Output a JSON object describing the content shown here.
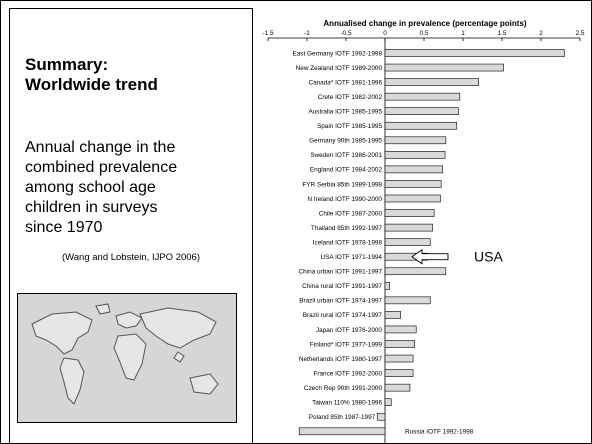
{
  "left_panel": {
    "title_lines": [
      "Summary:",
      "Worldwide trend"
    ],
    "body_lines": [
      "Annual change in the",
      "combined prevalence",
      "among school age",
      "children in surveys",
      "since 1970"
    ],
    "citation": "(Wang and Lobstein, IJPO 2006)"
  },
  "annotation": {
    "usa_label": "USA",
    "russia_label": "Russia IOTF 1992-1998"
  },
  "colors": {
    "bar_fill": "#d9d9d9",
    "bar_stroke": "#000000",
    "map_ocean": "#d6d6d6",
    "map_land": "#e6e6e6"
  },
  "chart_data": {
    "type": "bar",
    "orientation": "horizontal",
    "title": "Annualised change in prevalence (percentage points)",
    "xlim": [
      -1.5,
      2.5
    ],
    "xticks": [
      "-1.5",
      "-1",
      "-0.5",
      "0",
      "0.5",
      "1",
      "1.5",
      "2",
      "2.5"
    ],
    "categories": [
      "East Germany IOTF 1992-1998",
      "New Zealand IOTF 1989-2000",
      "Canada* IOTF 1981-1996",
      "Crete IOTF 1982-2002",
      "Australia IOTF 1985-1995",
      "Spain IOTF 1985-1995",
      "Germany 90th 1985-1995",
      "Sweden IOTF 1986-2001",
      "England IOTF 1984-2002",
      "FYR Serbia 85th 1989-1998",
      "N Ireland IOTF 1990-2000",
      "Chile IOTF 1987-2000",
      "Thailand 85th 1992-1997",
      "Iceland IOTF 1978-1998",
      "USA IOTF 1971-1994",
      "China urban IOTF 1991-1997",
      "China rural IOTF 1991-1997",
      "Brazil urban IOTF 1974-1997",
      "Brazil rural IOTF 1974-1997",
      "Japan IOTF 1976-2000",
      "Finland* IOTF 1977-1999",
      "Netherlands IOTF 1980-1997",
      "France IOTF 1992-2000",
      "Czech Rep 90th 1991-2000",
      "Taiwan 110% 1980-1996",
      "Poland 85th 1987-1997",
      "Russia IOTF 1992-1998"
    ],
    "values": [
      2.3,
      1.52,
      1.2,
      0.96,
      0.94,
      0.92,
      0.78,
      0.77,
      0.74,
      0.72,
      0.71,
      0.63,
      0.61,
      0.58,
      0.55,
      0.78,
      0.06,
      0.58,
      0.2,
      0.4,
      0.38,
      0.36,
      0.36,
      0.32,
      0.08,
      -0.1,
      -1.1
    ]
  }
}
